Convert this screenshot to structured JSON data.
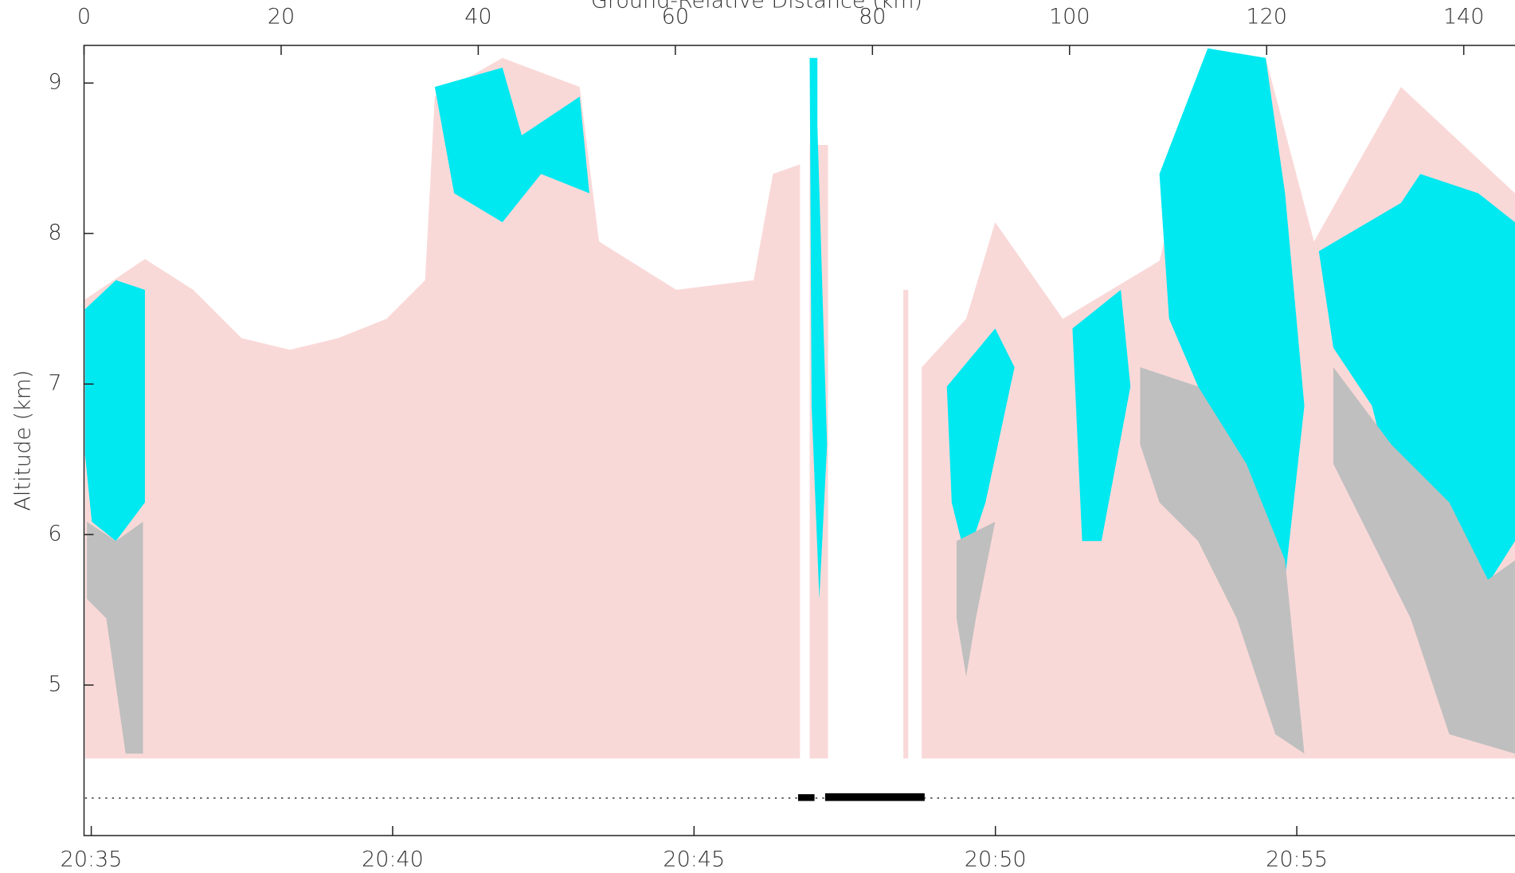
{
  "chart_data": {
    "type": "curtain",
    "title": "Ground-Relative Distance (km)",
    "y_label": "Altitude (km)",
    "xlim": [
      0,
      145.2
    ],
    "xticks": [
      0,
      20,
      40,
      60,
      80,
      100,
      120,
      140
    ],
    "x2lim": [
      34.88,
      58.62
    ],
    "x2ticks": [
      {
        "value": 35,
        "label": "20:35"
      },
      {
        "value": 40,
        "label": "20:40"
      },
      {
        "value": 45,
        "label": "20:45"
      },
      {
        "value": 50,
        "label": "20:50"
      },
      {
        "value": 55,
        "label": "20:55"
      }
    ],
    "ylim": [
      4.0,
      9.25
    ],
    "yticks": [
      5,
      6,
      7,
      8,
      9
    ]
  }
}
